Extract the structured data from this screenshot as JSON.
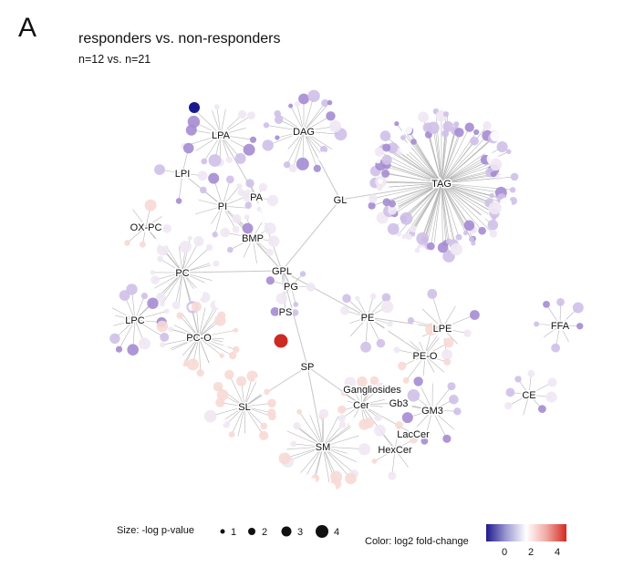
{
  "panel_letter": "A",
  "title": "responders vs. non-responders",
  "subtitle": "n=12 vs. n=21",
  "colors": {
    "edge": "#b5b5b5",
    "hub_edge": "#c7c7c7",
    "purple_strong": "#1a1a8c",
    "purple": "#a58cd1",
    "purple_light": "#cfc0e8",
    "pale": "#efe8f4",
    "pink": "#f7d9d5",
    "red": "#cc2a22",
    "white": "#ffffff"
  },
  "network": {
    "hubs": [
      {
        "id": "LPA",
        "label": "LPA"
      },
      {
        "id": "DAG",
        "label": "DAG"
      },
      {
        "id": "TAG",
        "label": "TAG"
      },
      {
        "id": "LPI",
        "label": "LPI"
      },
      {
        "id": "PI",
        "label": "PI"
      },
      {
        "id": "PA",
        "label": "PA"
      },
      {
        "id": "GL",
        "label": "GL"
      },
      {
        "id": "OXPC",
        "label": "OX-PC"
      },
      {
        "id": "BMP",
        "label": "BMP"
      },
      {
        "id": "PC",
        "label": "PC"
      },
      {
        "id": "GPL",
        "label": "GPL"
      },
      {
        "id": "PG",
        "label": "PG"
      },
      {
        "id": "LPC",
        "label": "LPC"
      },
      {
        "id": "PS",
        "label": "PS"
      },
      {
        "id": "PE",
        "label": "PE"
      },
      {
        "id": "LPE",
        "label": "LPE"
      },
      {
        "id": "FFA",
        "label": "FFA"
      },
      {
        "id": "PCO",
        "label": "PC-O"
      },
      {
        "id": "PEO",
        "label": "PE-O"
      },
      {
        "id": "SP",
        "label": "SP"
      },
      {
        "id": "GANG",
        "label": "Gangliosides"
      },
      {
        "id": "CE",
        "label": "CE"
      },
      {
        "id": "SL",
        "label": "SL"
      },
      {
        "id": "CER",
        "label": "Cer"
      },
      {
        "id": "GB3",
        "label": "Gb3"
      },
      {
        "id": "GM3",
        "label": "GM3"
      },
      {
        "id": "LACCER",
        "label": "LacCer"
      },
      {
        "id": "HEXCER",
        "label": "HexCer"
      },
      {
        "id": "SM",
        "label": "SM"
      }
    ],
    "links": [
      [
        "LPA",
        "PA"
      ],
      [
        "PA",
        "GPL"
      ],
      [
        "DAG",
        "GL"
      ],
      [
        "GL",
        "TAG"
      ],
      [
        "GL",
        "GPL"
      ],
      [
        "LPI",
        "PI"
      ],
      [
        "PI",
        "GPL"
      ],
      [
        "BMP",
        "GPL"
      ],
      [
        "OXPC",
        "PC"
      ],
      [
        "PC",
        "GPL"
      ],
      [
        "LPC",
        "PC"
      ],
      [
        "PC",
        "PCO"
      ],
      [
        "GPL",
        "PG"
      ],
      [
        "GPL",
        "PS"
      ],
      [
        "GPL",
        "PE"
      ],
      [
        "PE",
        "LPE"
      ],
      [
        "PE",
        "PEO"
      ],
      [
        "GPL",
        "SP"
      ],
      [
        "SP",
        "SL"
      ],
      [
        "SP",
        "SM"
      ],
      [
        "SP",
        "CER"
      ],
      [
        "CER",
        "GANG"
      ],
      [
        "CER",
        "GB3"
      ],
      [
        "GB3",
        "GM3"
      ],
      [
        "CER",
        "LACCER"
      ],
      [
        "CER",
        "HEXCER"
      ]
    ],
    "highlights": [
      {
        "hub": "LPA",
        "kind": "strong_purple",
        "log2fc": -2.5,
        "neglogp": 2
      },
      {
        "hub": "PS",
        "kind": "strong_red",
        "log2fc": 4.5,
        "neglogp": 2
      }
    ]
  },
  "legends": {
    "size_label": "Size: -log p-value",
    "size_values": [
      "1",
      "2",
      "3",
      "4"
    ],
    "color_label": "Color: log2 fold-change",
    "color_ticks": [
      "0",
      "2",
      "4"
    ],
    "color_scale": [
      "#1e1a8e",
      "#9e9ad2",
      "#ffffff",
      "#f1a9a3",
      "#d42a22"
    ]
  }
}
